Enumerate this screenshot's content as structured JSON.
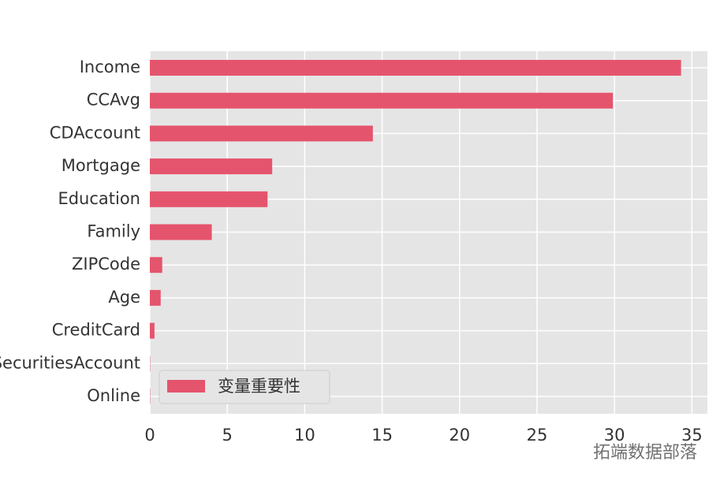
{
  "chart_data": {
    "type": "barh",
    "categories": [
      "Income",
      "CCAvg",
      "CDAccount",
      "Mortgage",
      "Education",
      "Family",
      "ZIPCode",
      "Age",
      "CreditCard",
      "SecuritiesAccount",
      "Online"
    ],
    "series": [
      {
        "name": "变量重要性",
        "color": "#e5546d",
        "values": [
          34.3,
          29.9,
          14.4,
          7.9,
          7.6,
          4.0,
          0.8,
          0.7,
          0.3,
          0.02,
          0.02
        ]
      }
    ],
    "xlim": [
      0,
      36
    ],
    "xticks": [
      0,
      5,
      10,
      15,
      20,
      25,
      30,
      35
    ],
    "grid": true,
    "legend": "lower left",
    "watermark": "拓端数据部落"
  }
}
